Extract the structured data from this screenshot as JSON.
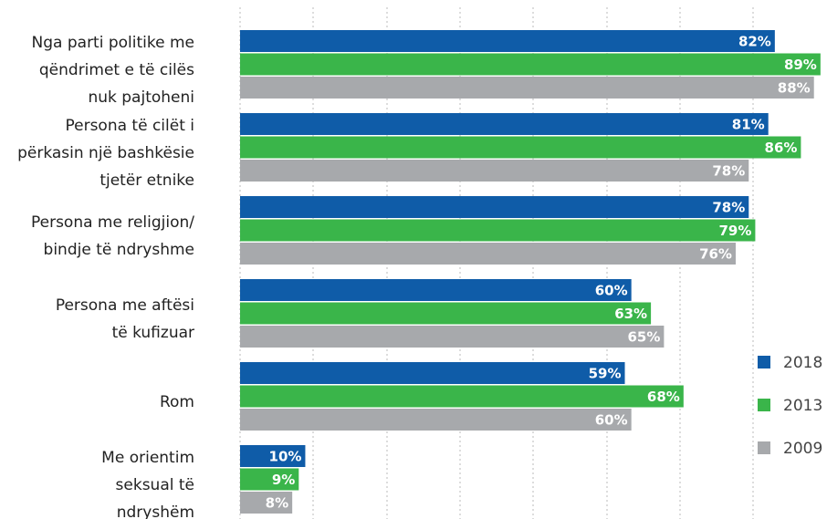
{
  "chart_data": {
    "type": "barh",
    "categories": [
      "Nga parti politike me\nqëndrimet e të cilës\nnuk pajtoheni",
      "Persona të cilët i\npërkasin një bashkësie\ntjetër etnike",
      "Persona me religjion/\nbindje të ndryshme",
      "Persona me aftësi\ntë kufizuar",
      "Rom",
      "Me orientim\nseksual të\nndryshëm"
    ],
    "series": [
      {
        "name": "2018",
        "color": "#0f5ca8",
        "values": [
          82,
          81,
          78,
          60,
          59,
          10
        ],
        "value_labels": [
          "82%",
          "81%",
          "78%",
          "60%",
          "59%",
          "10%"
        ]
      },
      {
        "name": "2013",
        "color": "#3ab54a",
        "values": [
          89,
          86,
          79,
          63,
          68,
          9
        ],
        "value_labels": [
          "89%",
          "86%",
          "79%",
          "63%",
          "68%",
          "9%"
        ]
      },
      {
        "name": "2009",
        "color": "#a7a9ac",
        "values": [
          88,
          78,
          76,
          65,
          60,
          8
        ],
        "value_labels": [
          "88%",
          "78%",
          "76%",
          "65%",
          "60%",
          "8%"
        ]
      }
    ],
    "xlim": [
      0,
      90
    ],
    "legend": "right"
  }
}
